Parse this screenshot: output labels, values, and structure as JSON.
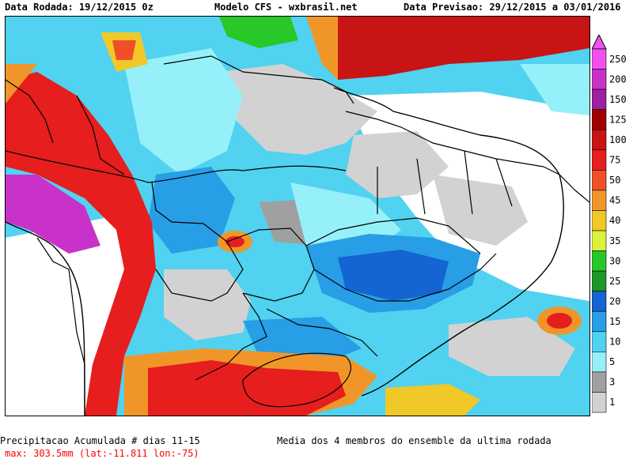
{
  "header": {
    "run_date": "Data Rodada: 19/12/2015 0z",
    "model": "Modelo CFS - wxbrasil.net",
    "forecast_date": "Data Previsao: 29/12/2015 a 03/01/2016"
  },
  "footer": {
    "title": "Precipitacao Acumulada # dias 11-15",
    "max_info": "max: 303.5mm (lat:-11.811 lon:-75)",
    "ensemble_note": "Media dos 4 membros do ensemble da ultima rodada"
  },
  "legend": {
    "labels": [
      "250",
      "200",
      "150",
      "125",
      "100",
      "75",
      "50",
      "45",
      "40",
      "35",
      "30",
      "25",
      "20",
      "15",
      "10",
      "5",
      "3",
      "1"
    ],
    "colors": [
      "#f050f0",
      "#c832c8",
      "#a01ea0",
      "#a00000",
      "#c81414",
      "#e61e1e",
      "#f05028",
      "#f09628",
      "#f0c828",
      "#dcf03c",
      "#28c828",
      "#1e9628",
      "#1464d2",
      "#289ee6",
      "#50d2f0",
      "#96f0fa",
      "#a0a0a0",
      "#d2d2d2"
    ]
  },
  "colors": {
    "gray_light": "#d2d2d2",
    "gray_dark": "#a0a0a0",
    "cyan_light": "#96f0fa",
    "cyan": "#50d2f0",
    "blue": "#1464d2",
    "red": "#e61e1e",
    "max_text": "#ff0000"
  }
}
